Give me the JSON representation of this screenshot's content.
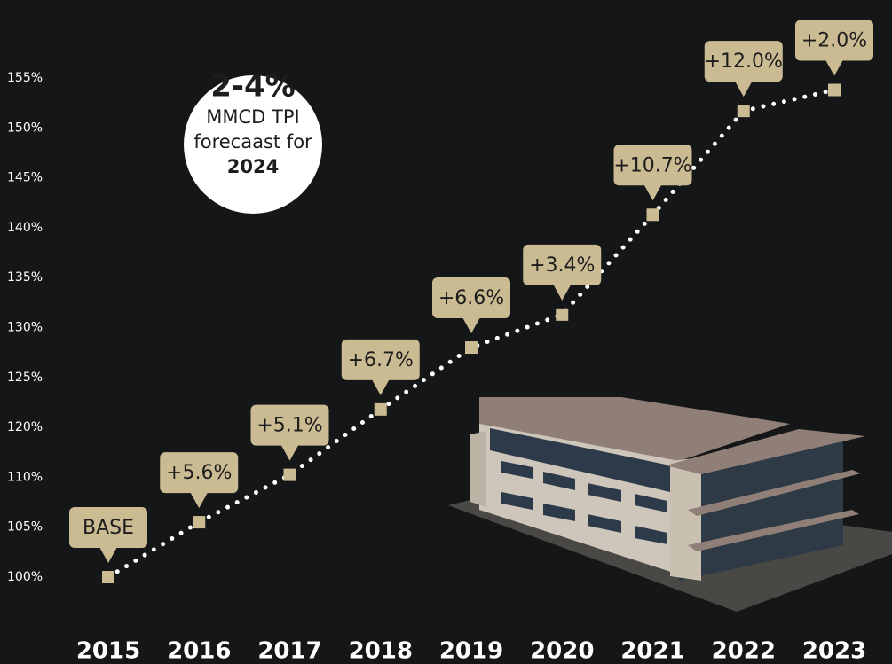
{
  "chart_data": {
    "type": "line",
    "categories": [
      "2015",
      "2016",
      "2017",
      "2018",
      "2019",
      "2020",
      "2021",
      "2022",
      "2023"
    ],
    "values": [
      100,
      105.5,
      110.5,
      121.8,
      128.0,
      131.3,
      141.3,
      151.7,
      153.8
    ],
    "annotations": [
      "BASE",
      "+5.6%",
      "+5.1%",
      "+6.7%",
      "+6.6%",
      "+3.4%",
      "+10.7%",
      "+12.0%",
      "+2.0%"
    ],
    "color": "#cbbb93",
    "line_color": "#ffffff",
    "ylim": [
      100,
      155
    ],
    "yticks": [
      {
        "value": 100,
        "label": "100%"
      },
      {
        "value": 105,
        "label": "105%"
      },
      {
        "value": 110,
        "label": "110%"
      },
      {
        "value": 120,
        "label": "120%"
      },
      {
        "value": 125,
        "label": "125%"
      },
      {
        "value": 130,
        "label": "130%"
      },
      {
        "value": 135,
        "label": "135%"
      },
      {
        "value": 140,
        "label": "140%"
      },
      {
        "value": 145,
        "label": "145%"
      },
      {
        "value": 150,
        "label": "150%"
      },
      {
        "value": 155,
        "label": "155%"
      }
    ],
    "callout": {
      "headline": "2-4%",
      "line1": "MMCD TPI",
      "line2": "forecaast for",
      "year": "2024"
    }
  }
}
